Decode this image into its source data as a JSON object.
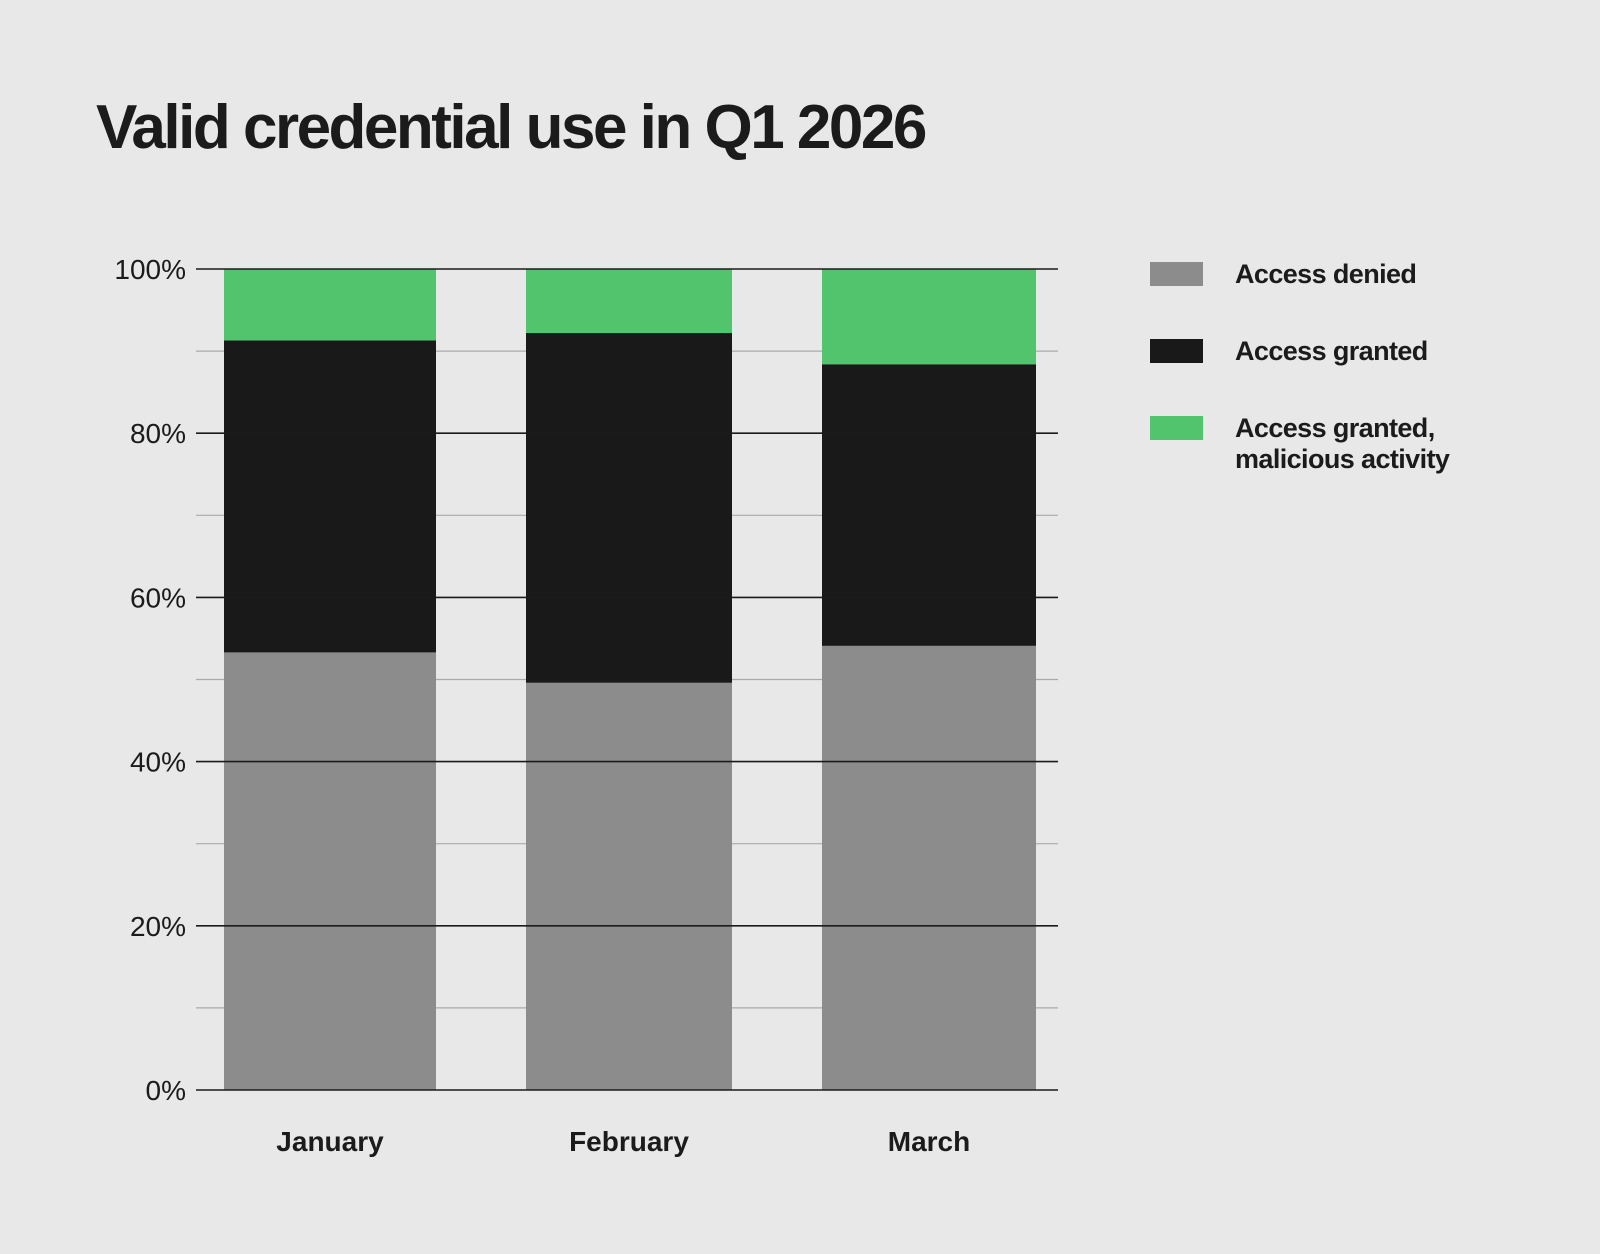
{
  "colors": {
    "background": "#e8e8e8",
    "text": "#1b1b1b",
    "access_denied": "#8c8c8c",
    "access_granted": "#191919",
    "access_granted_malicious": "#52c46e",
    "gridline_major": "#1b1b1b",
    "gridline_minor": "#aaaaaa"
  },
  "chart_data": {
    "type": "bar",
    "stacked": true,
    "title": "Valid credential use in Q1 2026",
    "xlabel": "",
    "ylabel": "",
    "ylim": [
      0,
      100
    ],
    "y_unit": "%",
    "y_ticks": [
      0,
      20,
      40,
      60,
      80,
      100
    ],
    "y_tick_labels": [
      "0%",
      "20%",
      "40%",
      "60%",
      "80%",
      "100%"
    ],
    "y_minor_ticks": [
      10,
      30,
      50,
      70,
      90
    ],
    "grid": true,
    "legend_position": "right",
    "categories": [
      "January",
      "February",
      "March"
    ],
    "series": [
      {
        "name": "Access denied",
        "color": "#8c8c8c",
        "values": [
          53.3,
          49.6,
          54.1
        ]
      },
      {
        "name": "Access granted",
        "color": "#191919",
        "values": [
          38.0,
          42.6,
          34.3
        ]
      },
      {
        "name": "Access granted, malicious activity",
        "color": "#52c46e",
        "values": [
          8.7,
          7.8,
          11.6
        ]
      }
    ]
  }
}
